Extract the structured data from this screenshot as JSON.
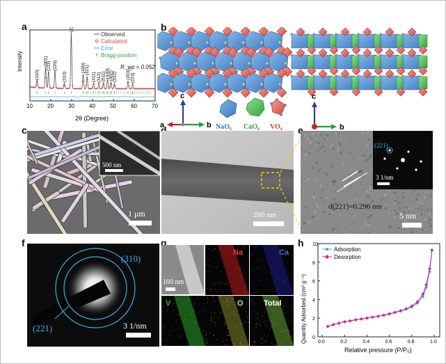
{
  "panels": {
    "a": {
      "label": "a"
    },
    "b": {
      "label": "b"
    },
    "c": {
      "label": "c",
      "scale_big": "1 μm",
      "scale_inset": "500 nm"
    },
    "d": {
      "label": "d",
      "scale": "200 nm"
    },
    "e": {
      "label": "e",
      "scale": "5 nm",
      "inset_scale": "3 1/nm",
      "inset_plane": "(221)",
      "dspacing": "d(221)=0.296 nm"
    },
    "f": {
      "label": "f",
      "ring_outer": "(310)",
      "ring_inner": "(221)",
      "scale": "3 1/nm"
    },
    "g": {
      "label": "g",
      "scale": "100 nm",
      "maps": [
        "Na",
        "Ca",
        "V",
        "O",
        "Total"
      ]
    },
    "h": {
      "label": "h"
    }
  },
  "structure": {
    "axis_c": "c",
    "axis_a": "a",
    "axis_b": "b",
    "polyhedra": [
      "NaO₆",
      "CaO₈",
      "VO₄"
    ]
  },
  "colors": {
    "observed": "#555555",
    "calculated": "#e8403a",
    "error": "#3aa0d8",
    "bragg": "#3aa04a",
    "adsorption": "#3aa8d8",
    "desorption": "#d81a8c"
  },
  "chart_data": [
    {
      "type": "line",
      "xlabel": "2θ (Degree)",
      "ylabel": "Intensity",
      "xlim": [
        10,
        70
      ],
      "xticks": [
        10,
        20,
        30,
        40,
        50,
        60,
        70
      ],
      "legend": [
        "Observed",
        "Calculated",
        "Error",
        "Bragg-position"
      ],
      "legend_position": "top-right",
      "annotation": "R_wp = 0.052",
      "peaks": [
        {
          "x": 13.4,
          "h": 0.14,
          "label": "(110)"
        },
        {
          "x": 17.5,
          "h": 0.38,
          "label": "(001)"
        },
        {
          "x": 18.9,
          "h": 0.3,
          "label": "(111)"
        },
        {
          "x": 22.0,
          "h": 0.3,
          "label": "(220)"
        },
        {
          "x": 26.5,
          "h": 0.1,
          "label": "(310)"
        },
        {
          "x": 29.8,
          "h": 1.0,
          "label": "(221)"
        },
        {
          "x": 35.5,
          "h": 0.26,
          "label": "(400)"
        },
        {
          "x": 37.4,
          "h": 0.22,
          "label": "(321)"
        },
        {
          "x": 40.5,
          "h": 0.1,
          "label": "(411)"
        },
        {
          "x": 43.0,
          "h": 0.09,
          "label": "(312)"
        },
        {
          "x": 45.2,
          "h": 0.11,
          "label": "(511)"
        },
        {
          "x": 47.2,
          "h": 0.16,
          "label": "(440)"
        },
        {
          "x": 48.8,
          "h": 0.12,
          "label": "(402)"
        },
        {
          "x": 50.5,
          "h": 0.1,
          "label": "(332)"
        },
        {
          "x": 57.0,
          "h": 0.14,
          "label": "(203)"
        },
        {
          "x": 59.2,
          "h": 0.08,
          "label": "(223)"
        }
      ]
    },
    {
      "type": "line",
      "xlabel": "Relative pressure (P/P₀)",
      "ylabel": "Quantity Adsorbed (cm³ g⁻¹)",
      "xlim": [
        0.0,
        1.0
      ],
      "ylim": [
        0,
        10
      ],
      "xticks": [
        0.0,
        0.2,
        0.4,
        0.6,
        0.8,
        1.0
      ],
      "yticks": [
        0,
        2,
        4,
        6,
        8,
        10
      ],
      "legend_position": "top-left",
      "series": [
        {
          "name": "Adsorption",
          "x": [
            0.05,
            0.1,
            0.15,
            0.2,
            0.25,
            0.3,
            0.35,
            0.4,
            0.45,
            0.5,
            0.55,
            0.6,
            0.65,
            0.7,
            0.75,
            0.8,
            0.85,
            0.9,
            0.93,
            0.96,
            0.98
          ],
          "y": [
            1.1,
            1.3,
            1.45,
            1.6,
            1.7,
            1.82,
            1.9,
            2.0,
            2.1,
            2.2,
            2.3,
            2.45,
            2.6,
            2.75,
            2.95,
            3.2,
            3.6,
            4.3,
            5.3,
            7.0,
            9.3
          ]
        },
        {
          "name": "Desorption",
          "x": [
            0.05,
            0.1,
            0.15,
            0.2,
            0.25,
            0.3,
            0.35,
            0.4,
            0.45,
            0.5,
            0.55,
            0.6,
            0.65,
            0.7,
            0.75,
            0.8,
            0.85,
            0.9,
            0.93,
            0.96,
            0.98
          ],
          "y": [
            1.12,
            1.32,
            1.47,
            1.62,
            1.72,
            1.84,
            1.92,
            2.02,
            2.12,
            2.22,
            2.33,
            2.48,
            2.63,
            2.8,
            3.0,
            3.3,
            3.75,
            4.6,
            5.6,
            7.3,
            9.3
          ]
        }
      ]
    }
  ]
}
